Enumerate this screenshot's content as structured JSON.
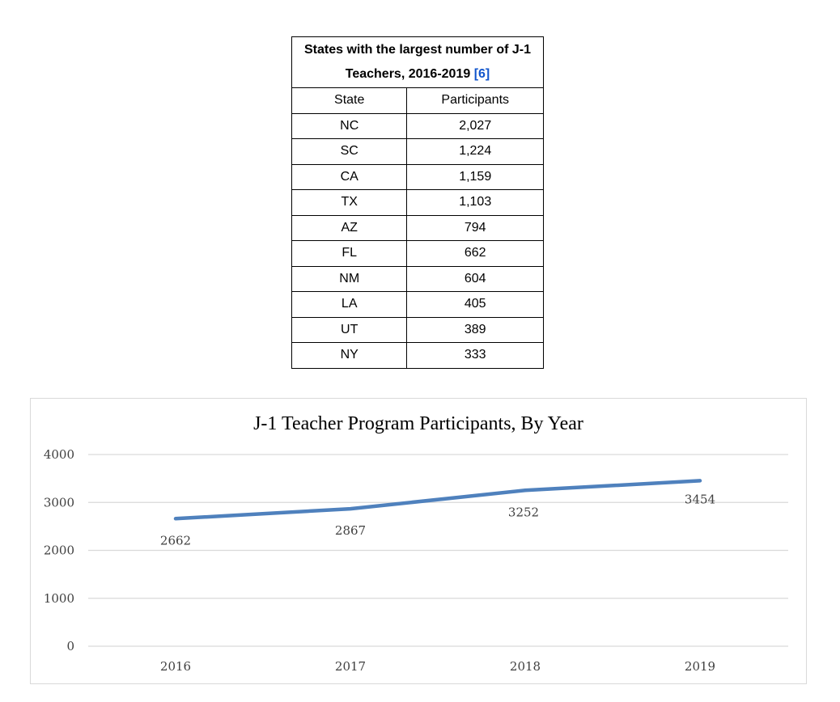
{
  "table": {
    "caption_text": "States with the largest number of J-1 Teachers, 2016-2019",
    "caption_ref": "[6]",
    "headers": [
      "State",
      "Participants"
    ],
    "rows": [
      [
        "NC",
        "2,027"
      ],
      [
        "SC",
        "1,224"
      ],
      [
        "CA",
        "1,159"
      ],
      [
        "TX",
        "1,103"
      ],
      [
        "AZ",
        "794"
      ],
      [
        "FL",
        "662"
      ],
      [
        "NM",
        "604"
      ],
      [
        "LA",
        "405"
      ],
      [
        "UT",
        "389"
      ],
      [
        "NY",
        "333"
      ]
    ]
  },
  "chart_data": {
    "type": "line",
    "title": "J-1 Teacher Program Participants, By Year",
    "categories": [
      "2016",
      "2017",
      "2018",
      "2019"
    ],
    "series": [
      {
        "values": [
          2662,
          2867,
          3252,
          3454
        ],
        "color": "#4f81bd"
      }
    ],
    "ylim": [
      0,
      4000
    ],
    "yticks": [
      0,
      1000,
      2000,
      3000,
      4000
    ],
    "grid": true,
    "data_labels": true,
    "legend": "none"
  }
}
